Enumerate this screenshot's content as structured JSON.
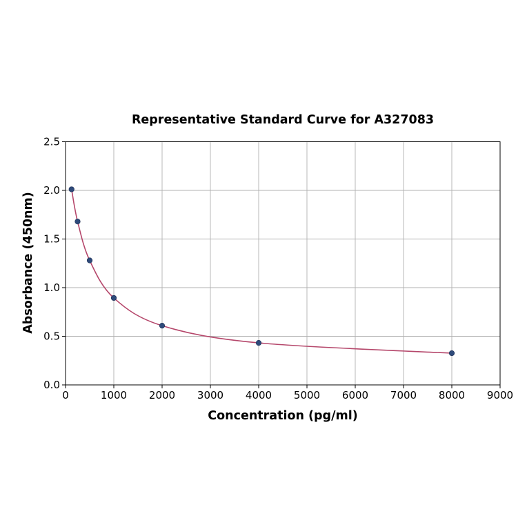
{
  "chart_data": {
    "type": "scatter",
    "title": "Representative Standard Curve for A327083",
    "xlabel": "Concentration (pg/ml)",
    "ylabel": "Absorbance (450nm)",
    "xlim": [
      0,
      9000
    ],
    "ylim": [
      0,
      2.5
    ],
    "xticks": [
      0,
      1000,
      2000,
      3000,
      4000,
      5000,
      6000,
      7000,
      8000,
      9000
    ],
    "yticks": [
      "0.0",
      "0.5",
      "1.0",
      "1.5",
      "2.0",
      "2.5"
    ],
    "grid": true,
    "x": [
      125,
      250,
      500,
      1000,
      2000,
      4000,
      8000
    ],
    "y": [
      2.011,
      1.68,
      1.28,
      0.894,
      0.609,
      0.432,
      0.326
    ],
    "fit_curve": true,
    "colors": {
      "points": "#2e4a7a",
      "curve": "#b5476b",
      "grid": "#b0b0b0"
    }
  }
}
